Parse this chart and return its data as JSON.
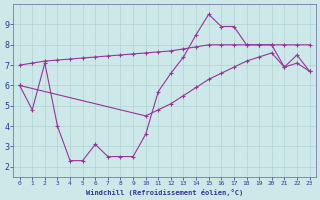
{
  "xlabel": "Windchill (Refroidissement éolien,°C)",
  "background_color": "#cce8e8",
  "line_color": "#993399",
  "xlim": [
    -0.5,
    23.5
  ],
  "ylim": [
    1.5,
    10
  ],
  "yticks": [
    2,
    3,
    4,
    5,
    6,
    7,
    8,
    9
  ],
  "xticks": [
    0,
    1,
    2,
    3,
    4,
    5,
    6,
    7,
    8,
    9,
    10,
    11,
    12,
    13,
    14,
    15,
    16,
    17,
    18,
    19,
    20,
    21,
    22,
    23
  ],
  "upper_x": [
    0,
    1,
    2,
    3,
    4,
    5,
    6,
    7,
    8,
    9,
    10,
    11,
    12,
    13,
    14,
    15,
    16,
    17,
    18,
    19,
    20,
    21,
    22,
    23
  ],
  "upper_y": [
    7.0,
    7.1,
    7.2,
    7.25,
    7.3,
    7.35,
    7.4,
    7.45,
    7.5,
    7.55,
    7.6,
    7.65,
    7.7,
    7.8,
    7.9,
    8.0,
    8.0,
    8.0,
    8.0,
    8.0,
    8.0,
    8.0,
    8.0,
    8.0
  ],
  "jagged_x": [
    0,
    1,
    2,
    3,
    4,
    5,
    6,
    7,
    8,
    9,
    10,
    11,
    12,
    13,
    14,
    15,
    16,
    17,
    18,
    19,
    20,
    21,
    22,
    23
  ],
  "jagged_y": [
    6.0,
    4.8,
    7.1,
    4.0,
    2.3,
    2.3,
    3.1,
    2.5,
    2.5,
    2.5,
    3.6,
    5.7,
    6.6,
    7.4,
    8.5,
    9.5,
    8.9,
    8.9,
    8.0,
    8.0,
    8.0,
    6.9,
    7.5,
    6.7
  ],
  "diag_x": [
    0,
    10,
    11,
    12,
    13,
    14,
    15,
    16,
    17,
    18,
    19,
    20,
    21,
    22,
    23
  ],
  "diag_y": [
    6.0,
    4.5,
    4.8,
    5.1,
    5.5,
    5.9,
    6.3,
    6.6,
    6.9,
    7.2,
    7.4,
    7.6,
    6.9,
    7.1,
    6.7
  ],
  "markersize": 2.5
}
